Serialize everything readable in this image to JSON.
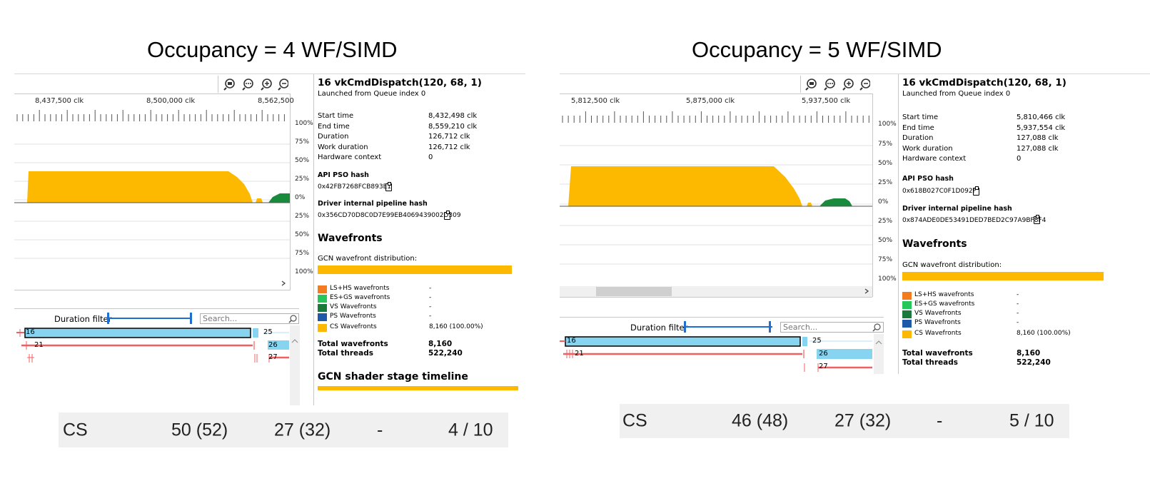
{
  "left": {
    "title": "Occupancy = 4 WF/SIMD",
    "timeline": {
      "ticks": [
        "8,437,500 clk",
        "8,500,000 clk",
        "8,562,500"
      ],
      "pct_top": [
        "100%",
        "75%",
        "50%",
        "25%",
        "0%"
      ],
      "pct_bottom": [
        "25%",
        "50%",
        "75%",
        "100%"
      ]
    },
    "details": {
      "dispatch_title": "16 vkCmdDispatch(120, 68, 1)",
      "launched": "Launched from Queue index 0",
      "rows": [
        {
          "k": "Start time",
          "v": "8,432,498 clk"
        },
        {
          "k": "End time",
          "v": "8,559,210 clk"
        },
        {
          "k": "Duration",
          "v": "126,712 clk"
        },
        {
          "k": "Work duration",
          "v": "126,712 clk"
        },
        {
          "k": "Hardware context",
          "v": "0"
        }
      ],
      "api_pso_label": "API PSO hash",
      "api_pso_hash": "0x42FB7268FCB893E1",
      "driver_label": "Driver internal pipeline hash",
      "driver_hash": "0x356CD70D8C0D7E99EB4069439002D309",
      "wavefronts_heading": "Wavefronts",
      "dist_label": "GCN wavefront distribution:",
      "legend": [
        {
          "label": "LS+HS wavefronts",
          "value": "-",
          "color": "#f47c20"
        },
        {
          "label": "ES+GS wavefronts",
          "value": "-",
          "color": "#26c75a"
        },
        {
          "label": "VS Wavefronts",
          "value": "-",
          "color": "#1a7a3c"
        },
        {
          "label": "PS Wavefronts",
          "value": "-",
          "color": "#1f5aa8"
        },
        {
          "label": "CS Wavefronts",
          "value": "8,160 (100.00%)",
          "color": "#fcb900"
        }
      ],
      "total_wavefronts_label": "Total wavefronts",
      "total_wavefronts": "8,160",
      "total_threads_label": "Total threads",
      "total_threads": "522,240",
      "stage_timeline_heading": "GCN shader stage timeline"
    },
    "events": {
      "duration_filter": "Duration filter",
      "search_placeholder": "Search...",
      "labels": [
        "16",
        "21",
        "25",
        "26",
        "27"
      ]
    },
    "stats": {
      "stage": "CS",
      "vgprs": "50 (52)",
      "sgprs": "27 (32)",
      "lds": "-",
      "occupancy": "4 / 10"
    }
  },
  "right": {
    "title": "Occupancy = 5 WF/SIMD",
    "timeline": {
      "ticks": [
        "5,812,500 clk",
        "5,875,000 clk",
        "5,937,500 clk"
      ],
      "pct_top": [
        "100%",
        "75%",
        "50%",
        "25%",
        "0%"
      ],
      "pct_bottom": [
        "25%",
        "50%",
        "75%",
        "100%"
      ]
    },
    "details": {
      "dispatch_title": "16 vkCmdDispatch(120, 68, 1)",
      "launched": "Launched from Queue index 0",
      "rows": [
        {
          "k": "Start time",
          "v": "5,810,466 clk"
        },
        {
          "k": "End time",
          "v": "5,937,554 clk"
        },
        {
          "k": "Duration",
          "v": "127,088 clk"
        },
        {
          "k": "Work duration",
          "v": "127,088 clk"
        },
        {
          "k": "Hardware context",
          "v": "0"
        }
      ],
      "api_pso_label": "API PSO hash",
      "api_pso_hash": "0x618B027C0F1D092F",
      "driver_label": "Driver internal pipeline hash",
      "driver_hash": "0x874ADE0DE53491DED7BED2C97A9BF8F4",
      "wavefronts_heading": "Wavefronts",
      "dist_label": "GCN wavefront distribution:",
      "legend": [
        {
          "label": "LS+HS wavefronts",
          "value": "-",
          "color": "#f47c20"
        },
        {
          "label": "ES+GS wavefronts",
          "value": "-",
          "color": "#26c75a"
        },
        {
          "label": "VS Wavefronts",
          "value": "-",
          "color": "#1a7a3c"
        },
        {
          "label": "PS Wavefronts",
          "value": "-",
          "color": "#1f5aa8"
        },
        {
          "label": "CS Wavefronts",
          "value": "8,160 (100.00%)",
          "color": "#fcb900"
        }
      ],
      "total_wavefronts_label": "Total wavefronts",
      "total_wavefronts": "8,160",
      "total_threads_label": "Total threads",
      "total_threads": "522,240"
    },
    "events": {
      "duration_filter": "Duration filter",
      "search_placeholder": "Search...",
      "labels": [
        "16",
        "21",
        "25",
        "26",
        "27"
      ]
    },
    "stats": {
      "stage": "CS",
      "vgprs": "46 (48)",
      "sgprs": "27 (32)",
      "lds": "-",
      "occupancy": "5 / 10"
    }
  },
  "icons": [
    "zoom-reset-icon",
    "zoom-selection-icon",
    "zoom-in-icon",
    "zoom-out-icon",
    "clipboard-icon",
    "magnifier-icon",
    "chevron-right-icon"
  ]
}
